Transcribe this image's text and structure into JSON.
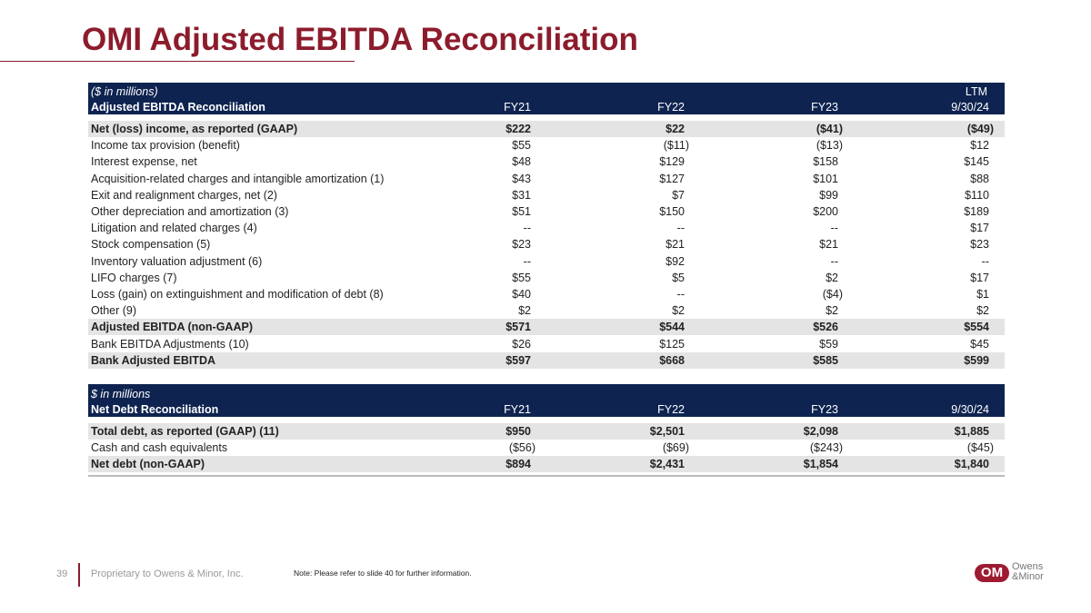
{
  "header": {
    "title": "OMI Adjusted EBITDA Reconciliation"
  },
  "table1": {
    "unit_note": "($ in millions)",
    "ltm_label": "LTM",
    "columns": [
      "Adjusted EBITDA Reconciliation",
      "FY21",
      "FY22",
      "FY23",
      "9/30/24"
    ],
    "rows": [
      [
        "Net (loss) income, as reported (GAAP)",
        "$222",
        "$22",
        "($41)",
        "($49)"
      ],
      [
        "Income tax provision (benefit)",
        "$55",
        "($11)",
        "($13)",
        "$12"
      ],
      [
        "Interest expense, net",
        "$48",
        "$129",
        "$158",
        "$145"
      ],
      [
        "Acquisition-related charges and intangible amortization (1)",
        "$43",
        "$127",
        "$101",
        "$88"
      ],
      [
        "Exit and realignment charges, net (2)",
        "$31",
        "$7",
        "$99",
        "$110"
      ],
      [
        "Other depreciation and amortization (3)",
        "$51",
        "$150",
        "$200",
        "$189"
      ],
      [
        "Litigation and related charges (4)",
        "--",
        "--",
        "--",
        "$17"
      ],
      [
        "Stock compensation (5)",
        "$23",
        "$21",
        "$21",
        "$23"
      ],
      [
        "Inventory valuation adjustment (6)",
        "--",
        "$92",
        "--",
        "--"
      ],
      [
        "LIFO charges (7)",
        "$55",
        "$5",
        "$2",
        "$17"
      ],
      [
        "Loss (gain) on extinguishment and modification of debt  (8)",
        "$40",
        "--",
        "($4)",
        "$1"
      ],
      [
        "Other (9)",
        "$2",
        "$2",
        "$2",
        "$2"
      ],
      [
        "Adjusted EBITDA (non-GAAP)",
        "$571",
        "$544",
        "$526",
        "$554"
      ],
      [
        "Bank EBITDA Adjustments (10)",
        "$26",
        "$125",
        "$59",
        "$45"
      ],
      [
        "Bank Adjusted EBITDA",
        "$597",
        "$668",
        "$585",
        "$599"
      ]
    ]
  },
  "table2": {
    "unit_note": "$ in millions",
    "columns": [
      "Net Debt Reconciliation",
      "FY21",
      "FY22",
      "FY23",
      "9/30/24"
    ],
    "rows": [
      [
        "Total debt, as reported (GAAP) (11)",
        "$950",
        "$2,501",
        "$2,098",
        "$1,885"
      ],
      [
        "Cash and cash equivalents",
        "($56)",
        "($69)",
        "($243)",
        "($45)"
      ],
      [
        "Net debt (non-GAAP)",
        "$894",
        "$2,431",
        "$1,854",
        "$1,840"
      ]
    ]
  },
  "footer": {
    "page": "39",
    "proprietary": "Proprietary to Owens & Minor, Inc.",
    "note": "Note: Please refer to slide 40 for further information.",
    "logo_mark": "OM",
    "logo_line1": "Owens",
    "logo_line2": "&Minor"
  }
}
